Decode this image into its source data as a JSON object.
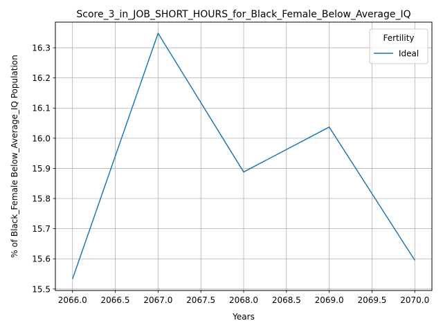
{
  "chart_data": {
    "type": "line",
    "title": "Score_3_in_JOB_SHORT_HOURS_for_Black_Female_Below_Average_IQ",
    "xlabel": "Years",
    "ylabel": "% of Black_Female Below_Average_IQ Population",
    "xlim": [
      2065.8,
      2070.2
    ],
    "ylim": [
      15.495,
      16.385
    ],
    "xticks": [
      2066.0,
      2066.5,
      2067.0,
      2067.5,
      2068.0,
      2068.5,
      2069.0,
      2069.5,
      2070.0
    ],
    "xtick_labels": [
      "2066.0",
      "2066.5",
      "2067.0",
      "2067.5",
      "2068.0",
      "2068.5",
      "2069.0",
      "2069.5",
      "2070.0"
    ],
    "yticks": [
      15.5,
      15.6,
      15.7,
      15.8,
      15.9,
      16.0,
      16.1,
      16.2,
      16.3
    ],
    "ytick_labels": [
      "15.5",
      "15.6",
      "15.7",
      "15.8",
      "15.9",
      "16.0",
      "16.1",
      "16.2",
      "16.3"
    ],
    "grid": true,
    "legend": {
      "title": "Fertility",
      "placement": "top-right"
    },
    "series": [
      {
        "name": "Ideal",
        "color": "#1f77b4",
        "x": [
          2066,
          2067,
          2068,
          2069,
          2070
        ],
        "y": [
          15.533,
          16.348,
          15.888,
          16.037,
          15.595
        ]
      }
    ]
  }
}
